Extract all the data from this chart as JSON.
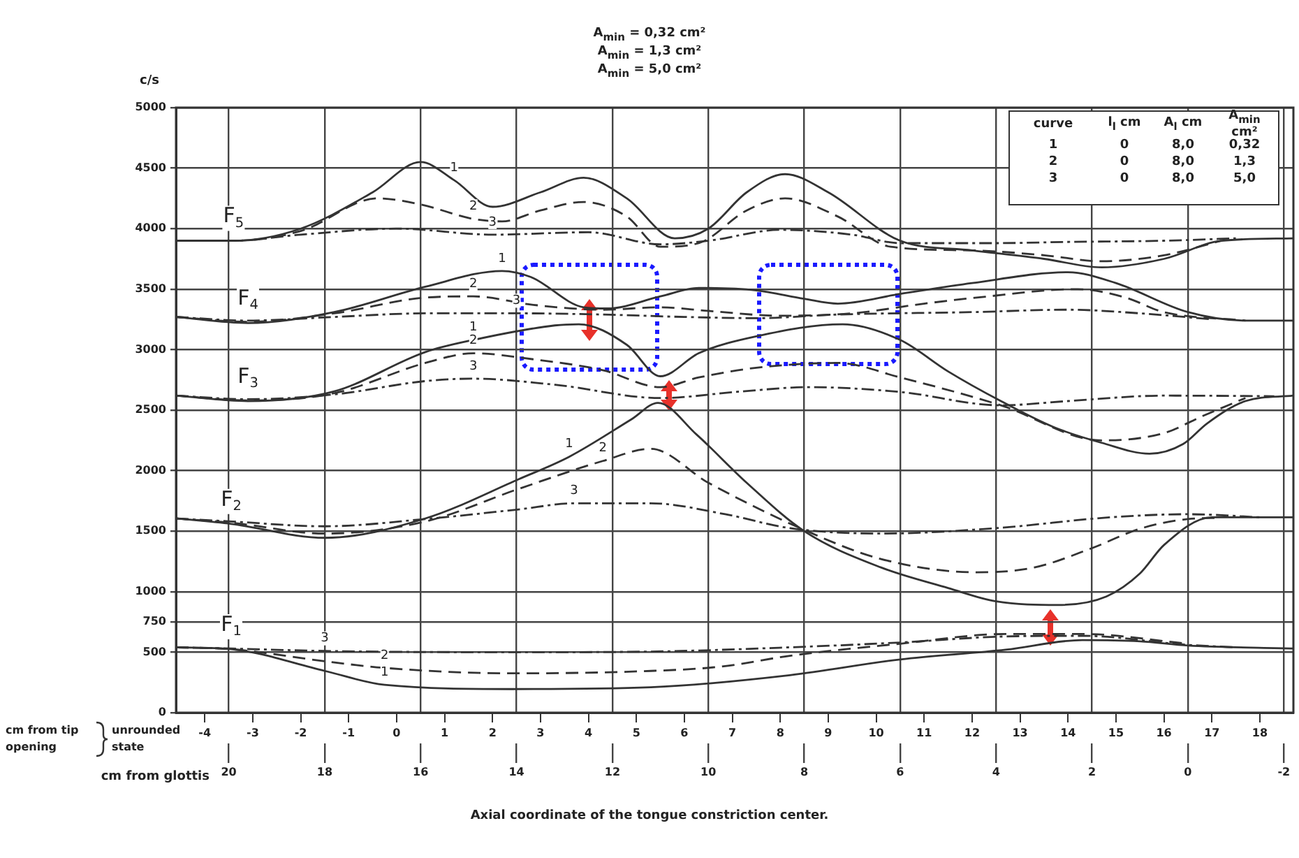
{
  "chart_data": {
    "type": "line",
    "ylabel": "c/s",
    "xlabel": "Axial coordinate of the tongue constriction center.",
    "x2label": "cm from glottis",
    "xlim": [
      -4.6,
      18.7
    ],
    "xticks": [
      -4,
      -3,
      -2,
      -1,
      0,
      1,
      2,
      3,
      4,
      5,
      6,
      7,
      8,
      9,
      10,
      11,
      12,
      13,
      14,
      15,
      16,
      17,
      18
    ],
    "x2lim": [
      21.1,
      -2.2
    ],
    "x2ticks": [
      20,
      18,
      16,
      14,
      12,
      10,
      8,
      6,
      4,
      2,
      0,
      -2
    ],
    "ylim": [
      0,
      5000
    ],
    "yticks": [
      0,
      500,
      750,
      1000,
      1500,
      2000,
      2500,
      3000,
      3500,
      4000,
      4500,
      5000
    ],
    "grid": true,
    "legend": false,
    "marker": "none",
    "series": [
      {
        "type": "line",
        "color": "#333333",
        "line_style": "solid",
        "x": [
          -4.6,
          -3.4,
          -2,
          -0.5,
          0.5,
          1.2,
          2,
          3,
          3.9,
          4.8,
          5.8,
          6.5,
          7.3,
          8.1,
          9,
          10.5,
          12,
          13.5,
          14.7,
          16,
          17.2,
          18.7
        ],
        "values": [
          3900,
          3900,
          4000,
          4300,
          4550,
          4400,
          4180,
          4300,
          4420,
          4250,
          3920,
          4000,
          4300,
          4450,
          4300,
          3900,
          3820,
          3750,
          3680,
          3750,
          3900,
          3920
        ]
      },
      {
        "type": "line",
        "color": "#333333",
        "line_style": "dashed",
        "x": [
          -4.6,
          -3.4,
          -2,
          -0.4,
          0.5,
          1.6,
          2.2,
          3,
          3.9,
          4.8,
          5.5,
          6.3,
          7.3,
          8.1,
          9.2,
          10.3,
          12,
          13.5,
          14.7,
          16,
          17.2
        ],
        "values": [
          3900,
          3900,
          3980,
          4250,
          4200,
          4080,
          4060,
          4150,
          4220,
          4100,
          3850,
          3880,
          4150,
          4250,
          4100,
          3850,
          3820,
          3780,
          3730,
          3780,
          3900
        ]
      },
      {
        "type": "line",
        "color": "#333333",
        "line_style": "dotted",
        "x": [
          -4.6,
          -3.4,
          -2,
          0,
          2,
          4,
          5.5,
          6.5,
          8,
          9.5,
          10.5,
          12.5,
          14,
          16,
          17.5
        ],
        "values": [
          3900,
          3900,
          3950,
          4000,
          3950,
          3970,
          3870,
          3900,
          3990,
          3950,
          3880,
          3880,
          3890,
          3900,
          3920
        ]
      },
      {
        "type": "line",
        "color": "#333333",
        "line_style": "solid",
        "x": [
          -4.6,
          -3.1,
          -1.3,
          0.6,
          2.2,
          2.8,
          3.9,
          4.4,
          5.5,
          6.3,
          7.5,
          8.5,
          9.2,
          10.5,
          12,
          14,
          15,
          16.5,
          17.7,
          18.7
        ],
        "values": [
          3270,
          3220,
          3310,
          3520,
          3650,
          3600,
          3350,
          3340,
          3440,
          3510,
          3490,
          3420,
          3380,
          3460,
          3550,
          3640,
          3550,
          3310,
          3240,
          3240
        ]
      },
      {
        "type": "line",
        "color": "#333333",
        "line_style": "dashed",
        "x": [
          -4.6,
          -3.1,
          -1.3,
          0.6,
          1.6,
          2.85,
          4.3,
          5.5,
          6.5,
          8,
          9.5,
          11,
          12.1,
          14.2,
          15.2,
          16,
          17.7
        ],
        "values": [
          3270,
          3230,
          3300,
          3430,
          3440,
          3370,
          3330,
          3350,
          3320,
          3280,
          3300,
          3380,
          3430,
          3500,
          3430,
          3310,
          3240
        ]
      },
      {
        "type": "line",
        "color": "#333333",
        "line_style": "dotted",
        "x": [
          -4.6,
          -3.1,
          -1.3,
          0.6,
          2.5,
          4.3,
          6,
          7.5,
          9.2,
          12,
          14,
          15.5,
          17
        ],
        "values": [
          3270,
          3240,
          3270,
          3300,
          3300,
          3290,
          3270,
          3260,
          3290,
          3310,
          3330,
          3300,
          3250
        ]
      },
      {
        "type": "line",
        "color": "#333333",
        "line_style": "solid",
        "x": [
          -4.6,
          -3.1,
          -1.3,
          0.6,
          1.6,
          3.3,
          3.8,
          4.8,
          5.5,
          6.3,
          7.5,
          9.3,
          10.5,
          11.5,
          12.6,
          13.7,
          14.7,
          15.7,
          16.4,
          16.9,
          17.7,
          18.7
        ],
        "values": [
          2620,
          2575,
          2655,
          2980,
          3080,
          3200,
          3210,
          3040,
          2780,
          2970,
          3110,
          3210,
          3080,
          2820,
          2575,
          2360,
          2230,
          2140,
          2220,
          2390,
          2575,
          2620
        ]
      },
      {
        "type": "line",
        "color": "#333333",
        "line_style": "dashed",
        "x": [
          -4.6,
          -3.1,
          -1.3,
          0.6,
          1.6,
          2.85,
          4.3,
          5.5,
          6.3,
          7.5,
          9.2,
          10.5,
          12.6,
          14.7,
          16,
          16.8,
          17.7
        ],
        "values": [
          2620,
          2580,
          2640,
          2890,
          2970,
          2920,
          2830,
          2690,
          2770,
          2850,
          2890,
          2770,
          2540,
          2250,
          2310,
          2450,
          2600
        ]
      },
      {
        "type": "line",
        "color": "#333333",
        "line_style": "dotted",
        "x": [
          -4.6,
          -3.1,
          -1.3,
          0.6,
          1.6,
          3.3,
          5.5,
          7.2,
          8.6,
          10.5,
          12.6,
          14,
          16,
          18.3
        ],
        "values": [
          2620,
          2590,
          2630,
          2740,
          2760,
          2710,
          2600,
          2655,
          2690,
          2650,
          2540,
          2575,
          2620,
          2615
        ]
      },
      {
        "type": "line",
        "color": "#333333",
        "line_style": "solid",
        "x": [
          -4.6,
          -3.45,
          -1.5,
          0.6,
          2.55,
          3.6,
          4.9,
          5.45,
          6.25,
          7.3,
          8.5,
          10.1,
          11.5,
          12.5,
          13.8,
          14.8,
          15.5,
          16,
          17,
          18.7
        ],
        "values": [
          1605,
          1560,
          1445,
          1605,
          1930,
          2115,
          2425,
          2560,
          2300,
          1900,
          1500,
          1200,
          1030,
          920,
          890,
          960,
          1150,
          1385,
          1615,
          1615
        ]
      },
      {
        "type": "line",
        "color": "#333333",
        "line_style": "dashed",
        "x": [
          -4.6,
          -3.45,
          -1.5,
          0.6,
          2.55,
          4.3,
          5.3,
          6.5,
          8.5,
          10.1,
          12.1,
          13.3,
          14.5,
          15.5,
          16.5,
          17.2
        ],
        "values": [
          1605,
          1570,
          1480,
          1580,
          1850,
          2080,
          2180,
          1900,
          1510,
          1270,
          1160,
          1200,
          1360,
          1520,
          1600,
          1610
        ]
      },
      {
        "type": "line",
        "color": "#333333",
        "line_style": "dotted",
        "x": [
          -4.6,
          -3.45,
          -1.5,
          0.6,
          2.55,
          3.7,
          5.3,
          6.85,
          8.2,
          10.1,
          12.5,
          14.9,
          16.5,
          18
        ],
        "values": [
          1605,
          1580,
          1540,
          1600,
          1680,
          1730,
          1730,
          1640,
          1525,
          1480,
          1525,
          1615,
          1640,
          1615
        ]
      },
      {
        "type": "line",
        "color": "#333333",
        "line_style": "solid",
        "x": [
          -4.6,
          -3.45,
          -1.5,
          -0.25,
          2.4,
          5.3,
          8.2,
          10.5,
          12.7,
          14.3,
          15.5,
          16.5,
          18.7
        ],
        "values": [
          540,
          525,
          345,
          230,
          195,
          210,
          310,
          440,
          520,
          600,
          590,
          555,
          530
        ]
      },
      {
        "type": "line",
        "color": "#333333",
        "line_style": "dashed",
        "x": [
          -4.6,
          -3.45,
          -1.5,
          -0.25,
          2.4,
          5.3,
          6.75,
          8.2,
          10.5,
          12.7,
          14.3,
          16.5
        ],
        "values": [
          540,
          525,
          425,
          370,
          325,
          345,
          380,
          470,
          570,
          650,
          650,
          570
        ]
      },
      {
        "type": "line",
        "color": "#333333",
        "line_style": "dotted",
        "x": [
          -4.6,
          -3.45,
          -1.5,
          2.4,
          5.3,
          8.2,
          10.5,
          12.7,
          14.3,
          16.5,
          17.5
        ],
        "values": [
          540,
          530,
          510,
          500,
          505,
          540,
          580,
          630,
          635,
          560,
          540
        ]
      }
    ],
    "annotations": [
      "A$_{min}$ = 0,32 cm²",
      "A$_{min}$ = 1,3 cm²",
      "A$_{min}$ = 5,0 cm²",
      "curve",
      "l$_{l}$ cm",
      "A$_{l}$ cm",
      "A$_{min}$ cm²",
      "1",
      "0",
      "8,0",
      "0,32",
      "2",
      "0",
      "8,0",
      "1,3",
      "3",
      "0",
      "8,0",
      "5,0",
      "cm from tip opening",
      "unrounded state",
      {
        "text": "F$_{5}$",
        "x": -3.4,
        "y": 3900
      },
      {
        "text": "F$_{4}$",
        "x": -3.1,
        "y": 3220
      },
      {
        "text": "F$_{3}$",
        "x": -3.1,
        "y": 2575
      },
      {
        "text": "F$_{2}$",
        "x": -3.45,
        "y": 1560
      },
      {
        "text": "F$_{1}$",
        "x": -3.45,
        "y": 525
      },
      {
        "text": "1",
        "x": 1.2,
        "y": 4400
      },
      {
        "text": "2",
        "x": 1.6,
        "y": 4080
      },
      {
        "text": "3",
        "x": 2,
        "y": 3950
      },
      {
        "text": "1",
        "x": 2.2,
        "y": 3650
      },
      {
        "text": "2",
        "x": 1.6,
        "y": 3440
      },
      {
        "text": "3",
        "x": 2.5,
        "y": 3300
      },
      {
        "text": "1",
        "x": 1.6,
        "y": 3080
      },
      {
        "text": "2",
        "x": 1.6,
        "y": 2970
      },
      {
        "text": "3",
        "x": 1.6,
        "y": 2760
      },
      {
        "text": "1",
        "x": 3.6,
        "y": 2115
      },
      {
        "text": "2",
        "x": 4.3,
        "y": 2080
      },
      {
        "text": "3",
        "x": 3.7,
        "y": 1730
      },
      {
        "text": "3",
        "x": -1.5,
        "y": 510
      },
      {
        "text": "2",
        "x": -0.25,
        "y": 370
      },
      {
        "text": "1",
        "x": -0.25,
        "y": 230
      }
    ]
  }
}
